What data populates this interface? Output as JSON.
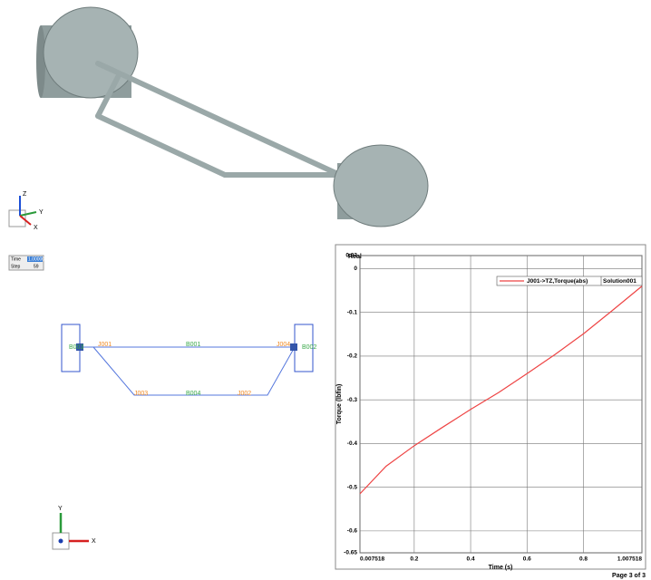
{
  "chart_data": {
    "type": "line",
    "title": "Real",
    "x_label": "Time (s)",
    "y_label": "Torque (lbfin)",
    "x": [
      0.007518,
      0.1,
      0.2,
      0.3,
      0.4,
      0.5,
      0.6,
      0.7,
      0.8,
      0.9,
      1.007518
    ],
    "series": [
      {
        "name": "J001->TZ,Torque(abs)",
        "color": "#ee4444",
        "values": [
          -0.515,
          -0.452,
          -0.405,
          -0.363,
          -0.322,
          -0.283,
          -0.24,
          -0.196,
          -0.149,
          -0.097,
          -0.04
        ]
      }
    ],
    "legend_source": "Solution001",
    "legend_position": "upper right",
    "xlim": [
      0.007518,
      1.007518
    ],
    "xticks": [
      0.007518,
      0.2,
      0.4,
      0.6,
      0.8,
      1.007518
    ],
    "ylim": [
      -0.65,
      0.03
    ],
    "yticks": [
      0.03,
      0,
      -0.1,
      -0.2,
      -0.3,
      -0.4,
      -0.5,
      -0.6,
      -0.65
    ],
    "grid": true
  },
  "page_label": "Page 3 of 3",
  "time_box": {
    "time_label": "Time",
    "time_value": "1.00000",
    "step_label": "Step",
    "step_value": "59"
  },
  "triad_3d": {
    "z": "Z",
    "y": "Y",
    "x": "X"
  },
  "triad_2d": {
    "y": "Y",
    "x": "X"
  },
  "schematic": {
    "bodies": [
      "B003",
      "B001",
      "B002",
      "B004"
    ],
    "joints": [
      "J001",
      "J004",
      "J003",
      "J002"
    ]
  }
}
